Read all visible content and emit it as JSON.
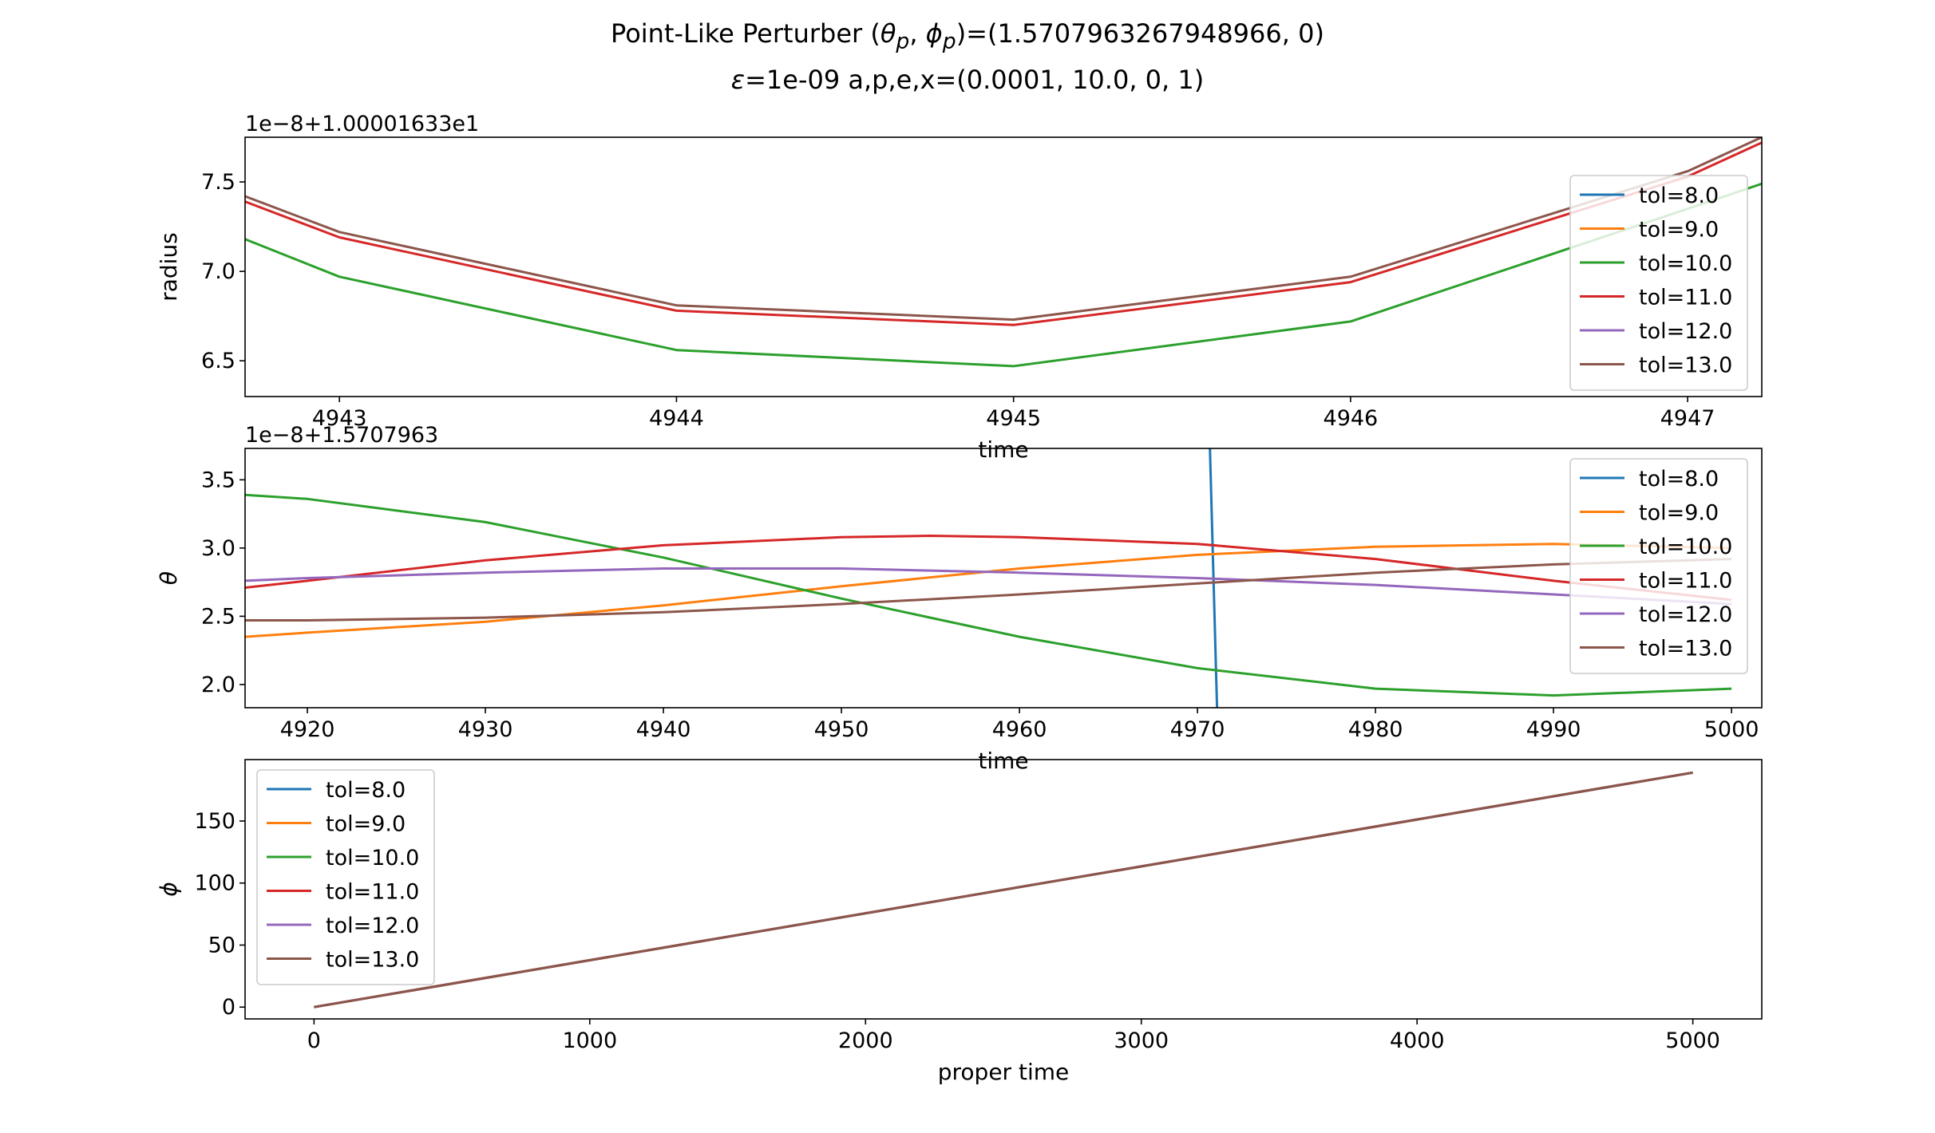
{
  "figure": {
    "title_line1_prefix": "Point-Like Perturber (",
    "title_line1_theta": "θ",
    "title_line1_theta_sub": "p",
    "title_line1_sep": ", ",
    "title_line1_phi": "ϕ",
    "title_line1_phi_sub": "p",
    "title_line1_suffix": ")=(1.5707963267948966, 0)",
    "title_line2_eps": "ε",
    "title_line2_rest": "=1e-09 a,p,e,x=(0.0001, 10.0, 0, 1)"
  },
  "colors": {
    "tol=8.0": "#1f77b4",
    "tol=9.0": "#ff7f0e",
    "tol=10.0": "#2ca02c",
    "tol=11.0": "#d62728",
    "tol=12.0": "#9467bd",
    "tol=13.0": "#8c564b"
  },
  "chart_data": [
    {
      "type": "line",
      "ylabel": "radius",
      "xlabel": "time",
      "offset_text": "1e−8+1.00001633e1",
      "xlim": [
        4942.72,
        4947.22
      ],
      "ylim": [
        6.3,
        7.75
      ],
      "xticks": [
        4943,
        4944,
        4945,
        4946,
        4947
      ],
      "yticks": [
        6.5,
        7.0,
        7.5
      ],
      "ytick_labels": [
        "6.5",
        "7.0",
        "7.5"
      ],
      "legend_loc": "right",
      "legend": [
        "tol=8.0",
        "tol=9.0",
        "tol=10.0",
        "tol=11.0",
        "tol=12.0",
        "tol=13.0"
      ],
      "series": [
        {
          "name": "tol=8.0",
          "points": []
        },
        {
          "name": "tol=9.0",
          "points": []
        },
        {
          "name": "tol=10.0",
          "points": [
            [
              4942.72,
              7.18
            ],
            [
              4943,
              6.97
            ],
            [
              4944,
              6.56
            ],
            [
              4945,
              6.47
            ],
            [
              4946,
              6.72
            ],
            [
              4947,
              7.35
            ],
            [
              4947.22,
              7.49
            ]
          ]
        },
        {
          "name": "tol=11.0",
          "points": [
            [
              4942.72,
              7.39
            ],
            [
              4943,
              7.19
            ],
            [
              4944,
              6.78
            ],
            [
              4945,
              6.7
            ],
            [
              4946,
              6.94
            ],
            [
              4947,
              7.53
            ],
            [
              4947.22,
              7.72
            ]
          ]
        },
        {
          "name": "tol=12.0",
          "points": []
        },
        {
          "name": "tol=13.0",
          "points": [
            [
              4942.72,
              7.42
            ],
            [
              4943,
              7.22
            ],
            [
              4944,
              6.81
            ],
            [
              4945,
              6.73
            ],
            [
              4946,
              6.97
            ],
            [
              4947,
              7.56
            ],
            [
              4947.22,
              7.75
            ]
          ]
        }
      ]
    },
    {
      "type": "line",
      "ylabel": "θ",
      "xlabel": "time",
      "offset_text": "1e−8+1.5707963",
      "xlim": [
        4916.5,
        5001.7
      ],
      "ylim": [
        1.83,
        3.73
      ],
      "xticks": [
        4920,
        4930,
        4940,
        4950,
        4960,
        4970,
        4980,
        4990,
        5000
      ],
      "yticks": [
        2.0,
        2.5,
        3.0,
        3.5
      ],
      "ytick_labels": [
        "2.0",
        "2.5",
        "3.0",
        "3.5"
      ],
      "legend_loc": "upper right",
      "legend": [
        "tol=8.0",
        "tol=9.0",
        "tol=10.0",
        "tol=11.0",
        "tol=12.0",
        "tol=13.0"
      ],
      "series": [
        {
          "name": "tol=8.0",
          "points": [
            [
              4970.7,
              3.73
            ],
            [
              4971.1,
              1.83
            ]
          ]
        },
        {
          "name": "tol=9.0",
          "points": [
            [
              4916.5,
              2.35
            ],
            [
              4920,
              2.38
            ],
            [
              4930,
              2.46
            ],
            [
              4940,
              2.58
            ],
            [
              4950,
              2.72
            ],
            [
              4960,
              2.85
            ],
            [
              4970,
              2.95
            ],
            [
              4980,
              3.01
            ],
            [
              4990,
              3.03
            ],
            [
              5000,
              3.0
            ]
          ]
        },
        {
          "name": "tol=10.0",
          "points": [
            [
              4916.5,
              3.39
            ],
            [
              4920,
              3.36
            ],
            [
              4930,
              3.19
            ],
            [
              4940,
              2.93
            ],
            [
              4950,
              2.63
            ],
            [
              4960,
              2.35
            ],
            [
              4970,
              2.12
            ],
            [
              4980,
              1.97
            ],
            [
              4990,
              1.92
            ],
            [
              5000,
              1.97
            ]
          ]
        },
        {
          "name": "tol=11.0",
          "points": [
            [
              4916.5,
              2.71
            ],
            [
              4920,
              2.76
            ],
            [
              4930,
              2.91
            ],
            [
              4940,
              3.02
            ],
            [
              4950,
              3.08
            ],
            [
              4955,
              3.09
            ],
            [
              4960,
              3.08
            ],
            [
              4970,
              3.03
            ],
            [
              4980,
              2.92
            ],
            [
              4990,
              2.76
            ],
            [
              5000,
              2.62
            ]
          ]
        },
        {
          "name": "tol=12.0",
          "points": [
            [
              4916.5,
              2.76
            ],
            [
              4920,
              2.78
            ],
            [
              4930,
              2.82
            ],
            [
              4940,
              2.85
            ],
            [
              4950,
              2.85
            ],
            [
              4960,
              2.82
            ],
            [
              4970,
              2.78
            ],
            [
              4980,
              2.73
            ],
            [
              4990,
              2.66
            ],
            [
              5000,
              2.59
            ]
          ]
        },
        {
          "name": "tol=13.0",
          "points": [
            [
              4916.5,
              2.47
            ],
            [
              4920,
              2.47
            ],
            [
              4930,
              2.49
            ],
            [
              4940,
              2.53
            ],
            [
              4950,
              2.59
            ],
            [
              4960,
              2.66
            ],
            [
              4970,
              2.74
            ],
            [
              4980,
              2.82
            ],
            [
              4990,
              2.88
            ],
            [
              5000,
              2.92
            ]
          ]
        }
      ]
    },
    {
      "type": "line",
      "ylabel": "ϕ",
      "xlabel": "proper time",
      "offset_text": "",
      "xlim": [
        -250,
        5250
      ],
      "ylim": [
        -9.5,
        199.5
      ],
      "xticks": [
        0,
        1000,
        2000,
        3000,
        4000,
        5000
      ],
      "yticks": [
        0,
        50,
        100,
        150
      ],
      "ytick_labels": [
        "0",
        "50",
        "100",
        "150"
      ],
      "legend_loc": "upper left",
      "legend": [
        "tol=8.0",
        "tol=9.0",
        "tol=10.0",
        "tol=11.0",
        "tol=12.0",
        "tol=13.0"
      ],
      "series": [
        {
          "name": "tol=8.0",
          "points": [
            [
              0,
              0
            ],
            [
              5000,
              189
            ]
          ]
        },
        {
          "name": "tol=9.0",
          "points": [
            [
              0,
              0
            ],
            [
              5000,
              189
            ]
          ]
        },
        {
          "name": "tol=10.0",
          "points": [
            [
              0,
              0
            ],
            [
              5000,
              189
            ]
          ]
        },
        {
          "name": "tol=11.0",
          "points": [
            [
              0,
              0
            ],
            [
              5000,
              189
            ]
          ]
        },
        {
          "name": "tol=12.0",
          "points": [
            [
              0,
              0
            ],
            [
              5000,
              189
            ]
          ]
        },
        {
          "name": "tol=13.0",
          "points": [
            [
              0,
              0
            ],
            [
              5000,
              189
            ]
          ]
        }
      ]
    }
  ]
}
